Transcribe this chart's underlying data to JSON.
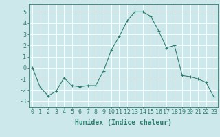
{
  "x": [
    0,
    1,
    2,
    3,
    4,
    5,
    6,
    7,
    8,
    9,
    10,
    11,
    12,
    13,
    14,
    15,
    16,
    17,
    18,
    19,
    20,
    21,
    22,
    23
  ],
  "y": [
    0,
    -1.8,
    -2.5,
    -2.1,
    -0.9,
    -1.6,
    -1.7,
    -1.6,
    -1.6,
    -0.3,
    1.6,
    2.8,
    4.2,
    5.0,
    5.0,
    4.6,
    3.3,
    1.8,
    2.0,
    -0.7,
    -0.8,
    -1.0,
    -1.3,
    -2.6
  ],
  "line_color": "#2d7d6e",
  "marker": "+",
  "marker_color": "#2d7d6e",
  "bg_color": "#cde8ea",
  "grid_color": "#b0d4d8",
  "xlabel": "Humidex (Indice chaleur)",
  "xlim": [
    -0.5,
    23.5
  ],
  "ylim": [
    -3.5,
    5.7
  ],
  "yticks": [
    -3,
    -2,
    -1,
    0,
    1,
    2,
    3,
    4,
    5
  ],
  "xticks": [
    0,
    1,
    2,
    3,
    4,
    5,
    6,
    7,
    8,
    9,
    10,
    11,
    12,
    13,
    14,
    15,
    16,
    17,
    18,
    19,
    20,
    21,
    22,
    23
  ],
  "label_color": "#2d7d6e",
  "tick_color": "#2d7d6e",
  "spine_color": "#2d7d6e",
  "font_size": 6,
  "xlabel_fontsize": 7
}
